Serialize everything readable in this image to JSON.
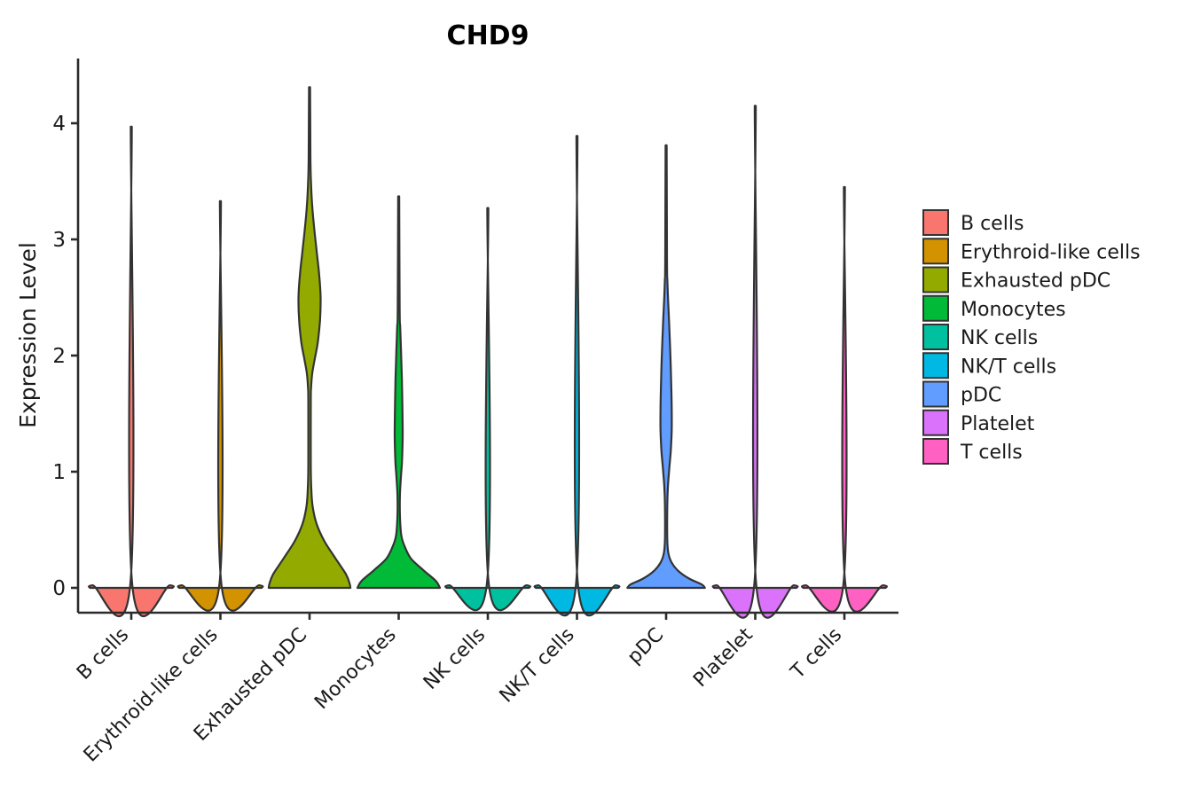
{
  "chart_data": {
    "type": "violin",
    "title": "CHD9",
    "xlabel": "",
    "ylabel": "Expression Level",
    "ylim": [
      0,
      4.5
    ],
    "yticks": [
      0,
      1,
      2,
      3,
      4
    ],
    "ytick_labels": [
      "0",
      "1",
      "2",
      "3",
      "4"
    ],
    "grid": false,
    "legend_position": "right",
    "categories": [
      "B cells",
      "Erythroid-like cells",
      "Exhausted pDC",
      "Monocytes",
      "NK cells",
      "NK/T cells",
      "pDC",
      "Platelet",
      "T cells"
    ],
    "colors": [
      "#F8766D",
      "#D39200",
      "#93AA00",
      "#00BA38",
      "#00C19F",
      "#00B9E3",
      "#619CFF",
      "#DB72FB",
      "#FF61C3"
    ],
    "outline_color": "#333333",
    "axis_color": "#2b2b2b",
    "series": [
      {
        "name": "B cells",
        "color": "#F8766D",
        "max": 3.97,
        "profile": [
          [
            0,
            0.99
          ],
          [
            0.022,
            0.93
          ],
          [
            0.055,
            0.016
          ],
          [
            3.97,
            0.013
          ]
        ]
      },
      {
        "name": "Erythroid-like cells",
        "color": "#D39200",
        "max": 3.33,
        "profile": [
          [
            0,
            0.99
          ],
          [
            0.022,
            0.93
          ],
          [
            0.055,
            0.016
          ],
          [
            3.33,
            0.013
          ]
        ]
      },
      {
        "name": "Exhausted pDC",
        "color": "#93AA00",
        "max": 4.31,
        "profile": [
          [
            0,
            0.98
          ],
          [
            0.04,
            0.96
          ],
          [
            0.12,
            0.87
          ],
          [
            0.25,
            0.63
          ],
          [
            0.4,
            0.36
          ],
          [
            0.55,
            0.17
          ],
          [
            0.7,
            0.075
          ],
          [
            0.85,
            0.042
          ],
          [
            1.05,
            0.03
          ],
          [
            1.6,
            0.03
          ],
          [
            1.72,
            0.036
          ],
          [
            1.85,
            0.065
          ],
          [
            1.98,
            0.13
          ],
          [
            2.12,
            0.2
          ],
          [
            2.3,
            0.25
          ],
          [
            2.5,
            0.265
          ],
          [
            2.7,
            0.23
          ],
          [
            2.9,
            0.17
          ],
          [
            3.1,
            0.11
          ],
          [
            3.3,
            0.062
          ],
          [
            3.5,
            0.034
          ],
          [
            3.7,
            0.022
          ],
          [
            4.31,
            0.013
          ]
        ]
      },
      {
        "name": "Monocytes",
        "color": "#00BA38",
        "max": 3.37,
        "profile": [
          [
            0,
            0.99
          ],
          [
            0.06,
            0.89
          ],
          [
            0.15,
            0.6
          ],
          [
            0.25,
            0.3
          ],
          [
            0.35,
            0.15
          ],
          [
            0.45,
            0.064
          ],
          [
            0.6,
            0.032
          ],
          [
            0.8,
            0.03
          ],
          [
            0.95,
            0.053
          ],
          [
            1.1,
            0.081
          ],
          [
            1.3,
            0.096
          ],
          [
            1.5,
            0.091
          ],
          [
            1.8,
            0.077
          ],
          [
            2.05,
            0.055
          ],
          [
            2.25,
            0.036
          ],
          [
            2.4,
            0.024
          ],
          [
            3.37,
            0.013
          ]
        ]
      },
      {
        "name": "NK cells",
        "color": "#00C19F",
        "max": 3.27,
        "profile": [
          [
            0,
            0.99
          ],
          [
            0.022,
            0.93
          ],
          [
            0.055,
            0.016
          ],
          [
            3.27,
            0.013
          ]
        ]
      },
      {
        "name": "NK/T cells",
        "color": "#00B9E3",
        "max": 3.89,
        "profile": [
          [
            0,
            0.99
          ],
          [
            0.022,
            0.93
          ],
          [
            0.055,
            0.016
          ],
          [
            3.89,
            0.013
          ]
        ]
      },
      {
        "name": "pDC",
        "color": "#619CFF",
        "max": 3.81,
        "profile": [
          [
            0,
            0.93
          ],
          [
            0.03,
            0.85
          ],
          [
            0.08,
            0.55
          ],
          [
            0.15,
            0.28
          ],
          [
            0.22,
            0.13
          ],
          [
            0.3,
            0.053
          ],
          [
            0.42,
            0.028
          ],
          [
            0.7,
            0.028
          ],
          [
            0.88,
            0.045
          ],
          [
            1.02,
            0.075
          ],
          [
            1.18,
            0.112
          ],
          [
            1.35,
            0.134
          ],
          [
            1.55,
            0.134
          ],
          [
            1.8,
            0.12
          ],
          [
            2.05,
            0.098
          ],
          [
            2.3,
            0.07
          ],
          [
            2.5,
            0.045
          ],
          [
            2.65,
            0.03
          ],
          [
            2.8,
            0.022
          ],
          [
            3.81,
            0.013
          ]
        ]
      },
      {
        "name": "Platelet",
        "color": "#DB72FB",
        "max": 4.15,
        "profile": [
          [
            0,
            0.99
          ],
          [
            0.022,
            0.93
          ],
          [
            0.055,
            0.016
          ],
          [
            4.15,
            0.013
          ]
        ]
      },
      {
        "name": "T cells",
        "color": "#FF61C3",
        "max": 3.45,
        "profile": [
          [
            0,
            0.99
          ],
          [
            0.022,
            0.93
          ],
          [
            0.055,
            0.016
          ],
          [
            3.45,
            0.013
          ]
        ]
      }
    ],
    "legend_items": [
      {
        "label": "B cells",
        "color": "#F8766D"
      },
      {
        "label": "Erythroid-like cells",
        "color": "#D39200"
      },
      {
        "label": "Exhausted pDC",
        "color": "#93AA00"
      },
      {
        "label": "Monocytes",
        "color": "#00BA38"
      },
      {
        "label": "NK cells",
        "color": "#00C19F"
      },
      {
        "label": "NK/T cells",
        "color": "#00B9E3"
      },
      {
        "label": "pDC",
        "color": "#619CFF"
      },
      {
        "label": "Platelet",
        "color": "#DB72FB"
      },
      {
        "label": "T cells",
        "color": "#FF61C3"
      }
    ]
  }
}
